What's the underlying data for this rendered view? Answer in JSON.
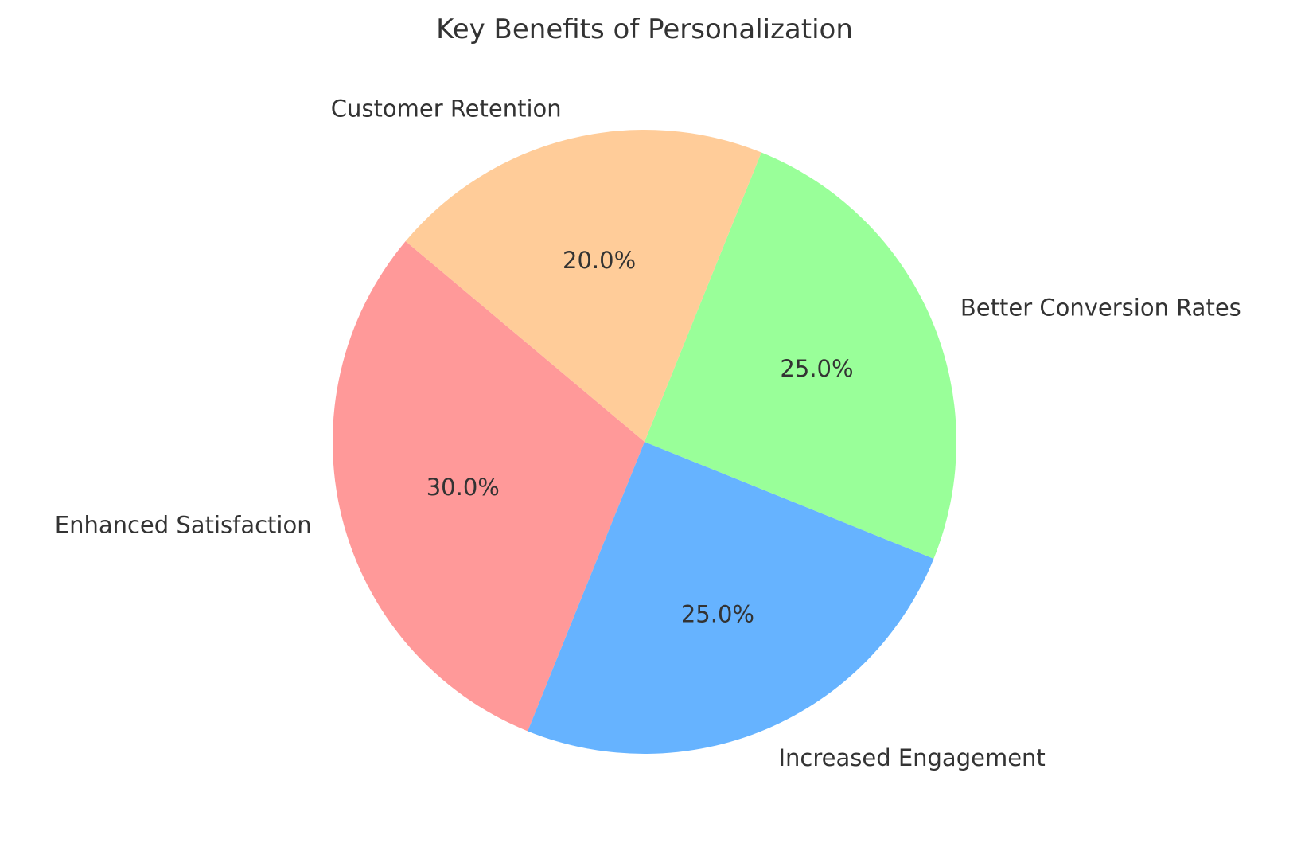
{
  "chart_data": {
    "type": "pie",
    "title": "Key Benefits of Personalization",
    "categories": [
      "Enhanced Satisfaction",
      "Increased Engagement",
      "Better Conversion Rates",
      "Customer Retention"
    ],
    "values": [
      30,
      25,
      25,
      20
    ],
    "value_labels": [
      "30.0%",
      "25.0%",
      "25.0%",
      "20.0%"
    ],
    "colors": [
      "#ff9999",
      "#66b3ff",
      "#99ff99",
      "#ffcc99"
    ],
    "start_angle_degrees": 140,
    "direction": "counterclockwise",
    "legend": "none"
  }
}
